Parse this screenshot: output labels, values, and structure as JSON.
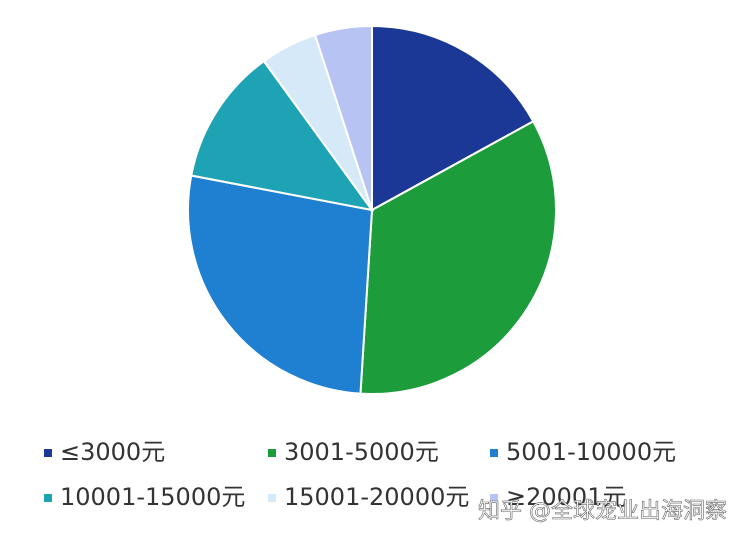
{
  "chart_data": {
    "type": "pie",
    "categories": [
      "≤3000元",
      "3001-5000元",
      "5001-10000元",
      "10001-15000元",
      "15001-20000元",
      "≥20001元"
    ],
    "values": [
      17,
      34,
      27,
      12,
      5,
      5
    ],
    "colors": [
      "#1c3896",
      "#1d9c3c",
      "#1f80d2",
      "#1ea3b5",
      "#d6e9f8",
      "#b7c3f3"
    ]
  },
  "watermark": "知乎 @全球宠业出海洞察"
}
